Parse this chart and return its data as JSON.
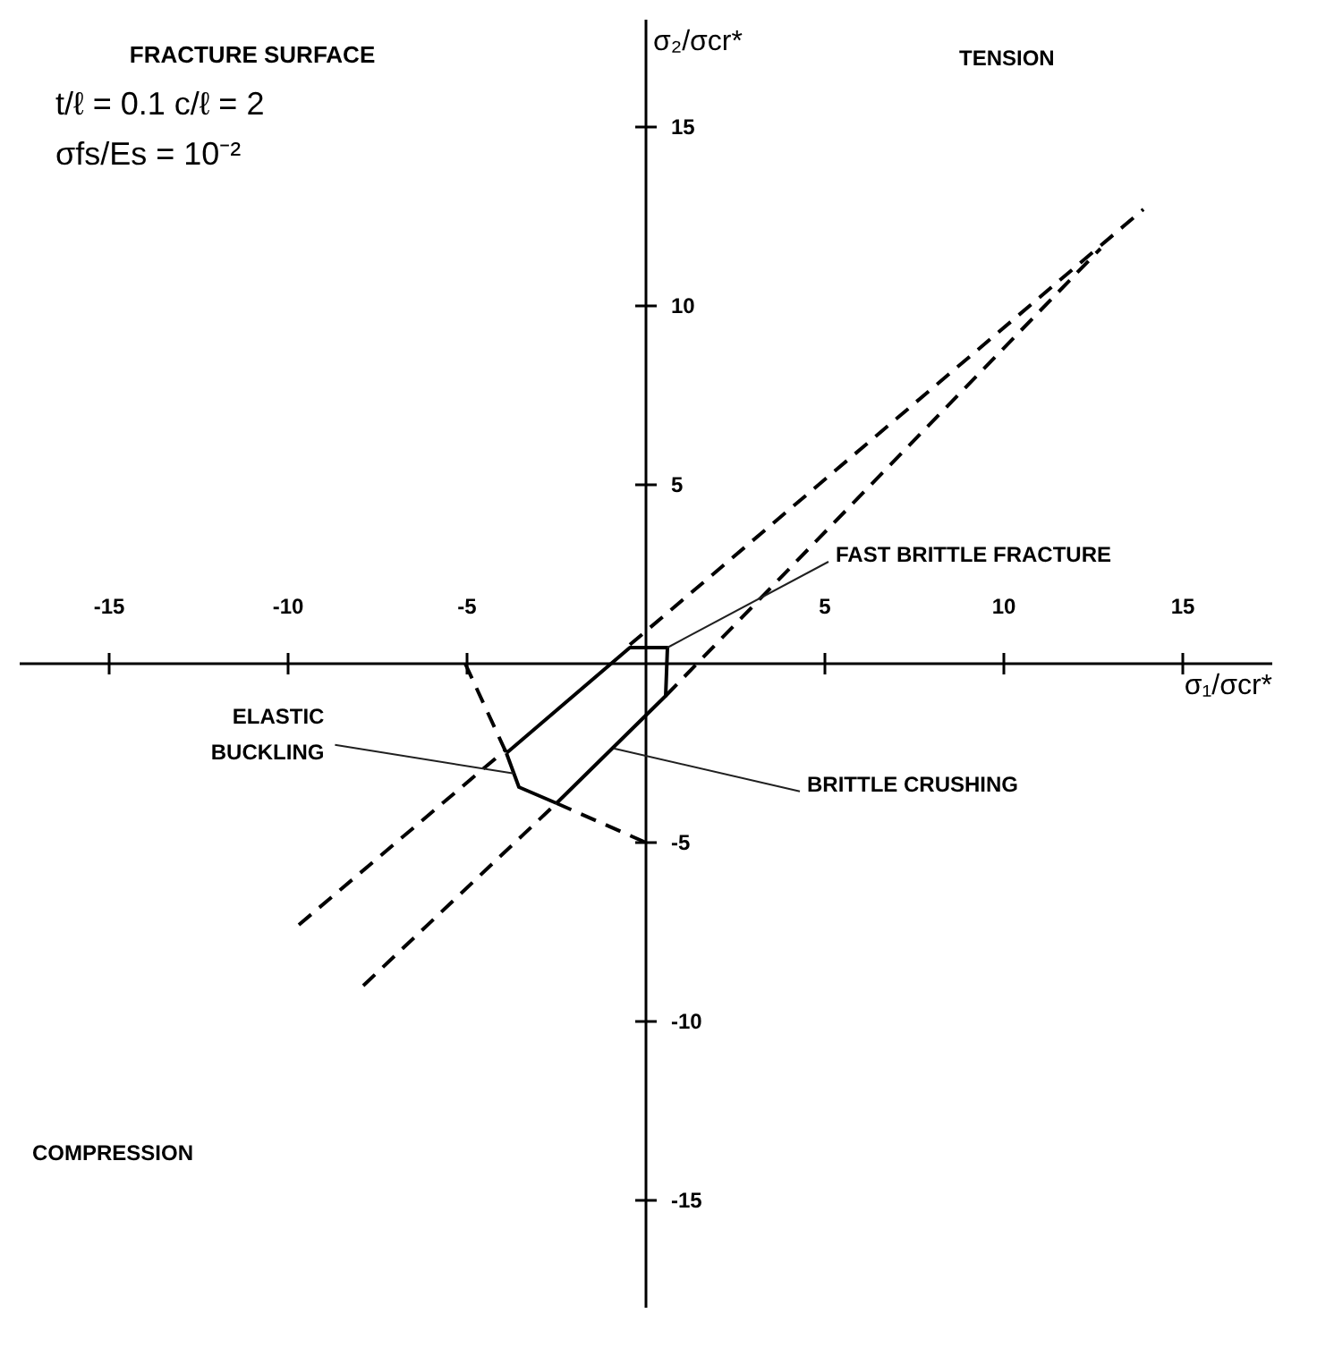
{
  "chart_data": {
    "type": "line",
    "title": "FRACTURE SURFACE",
    "subtitle": [
      "t/ℓ  =  0.1     c/ℓ  =  2",
      "σfs/Es = 10⁻²"
    ],
    "xlabel": "σ₁/σcr*",
    "ylabel": "σ₂/σcr*",
    "xlim": [
      -17.5,
      17.5
    ],
    "ylim": [
      -18,
      18
    ],
    "xticks": [
      -15,
      -10,
      -5,
      5,
      10,
      15
    ],
    "yticks": [
      -15,
      -10,
      -5,
      5,
      10,
      15
    ],
    "series": [
      {
        "color": "#000000",
        "line_style": "solid",
        "x": [
          -3.9,
          -0.45,
          0.6,
          0.55,
          -2.5
        ],
        "values": [
          -2.5,
          0.45,
          0.45,
          -0.9,
          -3.9
        ]
      },
      {
        "color": "#000000",
        "line_style": "solid",
        "x": [
          -2.5,
          -3.55,
          -3.9
        ],
        "values": [
          -3.9,
          -3.45,
          -2.5
        ]
      },
      {
        "color": "#000000",
        "line_style": "dashed",
        "x": [
          -9.7,
          -3.9
        ],
        "values": [
          -7.3,
          -2.39
        ]
      },
      {
        "color": "#000000",
        "line_style": "dashed",
        "x": [
          -0.45,
          13.9
        ],
        "values": [
          0.53,
          12.7
        ]
      },
      {
        "color": "#000000",
        "line_style": "dashed",
        "x": [
          -7.9,
          -2.5
        ],
        "values": [
          -9.0,
          -3.9
        ]
      },
      {
        "color": "#000000",
        "line_style": "dashed",
        "x": [
          0.55,
          12.7
        ],
        "values": [
          -0.9,
          11.6
        ]
      },
      {
        "color": "#000000",
        "line_style": "dashed",
        "x": [
          -5.05,
          -3.9
        ],
        "values": [
          0,
          -2.5
        ]
      },
      {
        "color": "#000000",
        "line_style": "dashed",
        "x": [
          -2.5,
          0
        ],
        "values": [
          -3.9,
          -5
        ]
      }
    ],
    "annotations": [
      {
        "text": "FAST BRITTLE FRACTURE",
        "x": 0.6,
        "y": 0.45
      },
      {
        "text": "BRITTLE CRUSHING",
        "x": -0.9,
        "y": -2.37
      },
      {
        "text": "ELASTIC\nBUCKLING",
        "x": -3.69,
        "y": -3.07
      },
      "TENSION",
      "COMPRESSION"
    ]
  }
}
